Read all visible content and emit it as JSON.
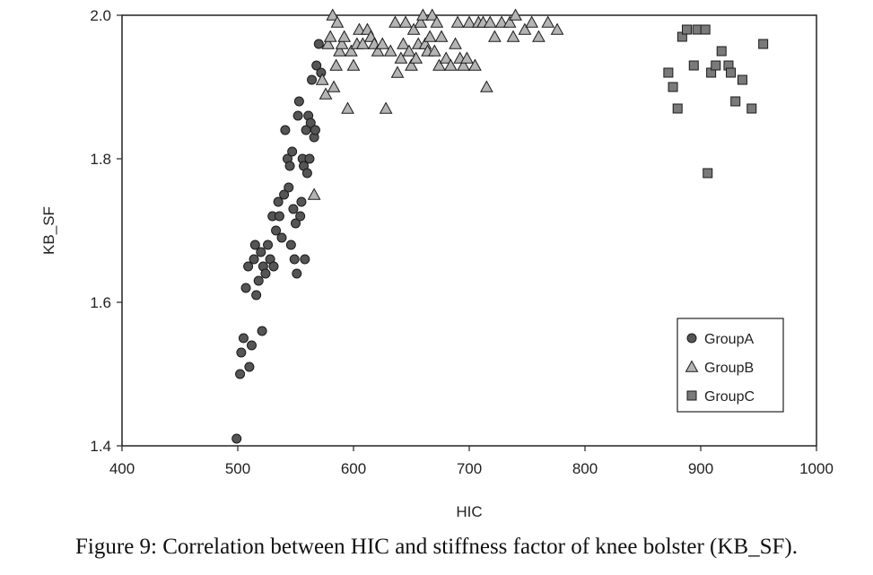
{
  "caption": "Figure 9: Correlation between HIC and stiffness factor of knee bolster (KB_SF).",
  "chart_data": {
    "type": "scatter",
    "xlabel": "HIC",
    "ylabel": "KB_SF",
    "xlim": [
      400,
      1000
    ],
    "ylim": [
      1.4,
      2.0
    ],
    "x_ticks": [
      400,
      500,
      600,
      700,
      800,
      900,
      1000
    ],
    "x_tick_labels": [
      "400",
      "500",
      "600",
      "700",
      "800",
      "900",
      "1000"
    ],
    "y_ticks": [
      1.4,
      1.6,
      1.8,
      2.0
    ],
    "y_tick_labels": [
      "1.4",
      "1.6",
      "1.8",
      "2.0"
    ],
    "grid": false,
    "legend_position": "bottom-right",
    "series": [
      {
        "name": "GroupA",
        "marker": "circle",
        "color": "#555555",
        "points": [
          [
            499,
            1.41
          ],
          [
            502,
            1.5
          ],
          [
            503,
            1.53
          ],
          [
            505,
            1.55
          ],
          [
            507,
            1.62
          ],
          [
            509,
            1.65
          ],
          [
            510,
            1.51
          ],
          [
            512,
            1.54
          ],
          [
            514,
            1.66
          ],
          [
            515,
            1.68
          ],
          [
            516,
            1.61
          ],
          [
            518,
            1.63
          ],
          [
            520,
            1.67
          ],
          [
            521,
            1.56
          ],
          [
            522,
            1.65
          ],
          [
            524,
            1.64
          ],
          [
            526,
            1.68
          ],
          [
            528,
            1.66
          ],
          [
            530,
            1.72
          ],
          [
            531,
            1.65
          ],
          [
            533,
            1.7
          ],
          [
            535,
            1.74
          ],
          [
            536,
            1.72
          ],
          [
            538,
            1.69
          ],
          [
            540,
            1.75
          ],
          [
            541,
            1.84
          ],
          [
            543,
            1.8
          ],
          [
            544,
            1.76
          ],
          [
            545,
            1.79
          ],
          [
            546,
            1.68
          ],
          [
            547,
            1.81
          ],
          [
            548,
            1.73
          ],
          [
            549,
            1.66
          ],
          [
            550,
            1.71
          ],
          [
            551,
            1.64
          ],
          [
            552,
            1.86
          ],
          [
            553,
            1.88
          ],
          [
            554,
            1.72
          ],
          [
            555,
            1.74
          ],
          [
            556,
            1.8
          ],
          [
            557,
            1.79
          ],
          [
            558,
            1.66
          ],
          [
            559,
            1.84
          ],
          [
            560,
            1.78
          ],
          [
            561,
            1.86
          ],
          [
            562,
            1.8
          ],
          [
            563,
            1.85
          ],
          [
            564,
            1.91
          ],
          [
            566,
            1.83
          ],
          [
            567,
            1.84
          ],
          [
            568,
            1.93
          ],
          [
            570,
            1.96
          ],
          [
            572,
            1.92
          ]
        ]
      },
      {
        "name": "GroupB",
        "marker": "triangle",
        "color": "#b4b4b4",
        "points": [
          [
            566,
            1.75
          ],
          [
            573,
            1.91
          ],
          [
            576,
            1.89
          ],
          [
            578,
            1.96
          ],
          [
            580,
            1.97
          ],
          [
            582,
            2.0
          ],
          [
            583,
            1.9
          ],
          [
            585,
            1.93
          ],
          [
            586,
            1.99
          ],
          [
            588,
            1.95
          ],
          [
            590,
            1.96
          ],
          [
            592,
            1.97
          ],
          [
            595,
            1.87
          ],
          [
            598,
            1.95
          ],
          [
            600,
            1.93
          ],
          [
            603,
            1.96
          ],
          [
            605,
            1.98
          ],
          [
            608,
            1.96
          ],
          [
            612,
            1.98
          ],
          [
            615,
            1.97
          ],
          [
            618,
            1.96
          ],
          [
            621,
            1.95
          ],
          [
            625,
            1.96
          ],
          [
            628,
            1.87
          ],
          [
            632,
            1.95
          ],
          [
            636,
            1.99
          ],
          [
            638,
            1.92
          ],
          [
            641,
            1.94
          ],
          [
            643,
            1.96
          ],
          [
            645,
            1.99
          ],
          [
            648,
            1.95
          ],
          [
            650,
            1.93
          ],
          [
            652,
            1.98
          ],
          [
            654,
            1.94
          ],
          [
            656,
            1.96
          ],
          [
            658,
            1.99
          ],
          [
            660,
            2.0
          ],
          [
            662,
            1.96
          ],
          [
            664,
            1.95
          ],
          [
            666,
            1.97
          ],
          [
            668,
            2.0
          ],
          [
            670,
            1.95
          ],
          [
            672,
            1.99
          ],
          [
            674,
            1.93
          ],
          [
            676,
            1.97
          ],
          [
            680,
            1.94
          ],
          [
            684,
            1.93
          ],
          [
            688,
            1.96
          ],
          [
            690,
            1.99
          ],
          [
            692,
            1.94
          ],
          [
            695,
            1.93
          ],
          [
            698,
            1.94
          ],
          [
            700,
            1.99
          ],
          [
            705,
            1.93
          ],
          [
            708,
            1.99
          ],
          [
            712,
            1.99
          ],
          [
            715,
            1.9
          ],
          [
            718,
            1.99
          ],
          [
            722,
            1.97
          ],
          [
            728,
            1.99
          ],
          [
            735,
            1.99
          ],
          [
            738,
            1.97
          ],
          [
            740,
            2.0
          ],
          [
            748,
            1.98
          ],
          [
            754,
            1.99
          ],
          [
            760,
            1.97
          ],
          [
            768,
            1.99
          ],
          [
            776,
            1.98
          ]
        ]
      },
      {
        "name": "GroupC",
        "marker": "square",
        "color": "#7a7a7a",
        "points": [
          [
            872,
            1.92
          ],
          [
            876,
            1.9
          ],
          [
            880,
            1.87
          ],
          [
            884,
            1.97
          ],
          [
            888,
            1.98
          ],
          [
            894,
            1.93
          ],
          [
            897,
            1.98
          ],
          [
            904,
            1.98
          ],
          [
            906,
            1.78
          ],
          [
            909,
            1.92
          ],
          [
            913,
            1.93
          ],
          [
            918,
            1.95
          ],
          [
            924,
            1.93
          ],
          [
            926,
            1.92
          ],
          [
            930,
            1.88
          ],
          [
            936,
            1.91
          ],
          [
            944,
            1.87
          ],
          [
            954,
            1.96
          ]
        ]
      }
    ]
  }
}
